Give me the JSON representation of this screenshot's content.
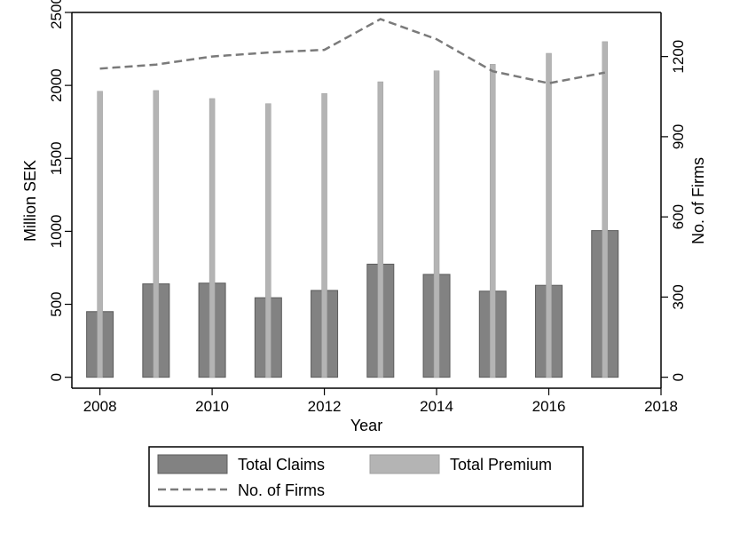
{
  "chart_data": {
    "type": "bar",
    "x": [
      2008,
      2009,
      2010,
      2011,
      2012,
      2013,
      2014,
      2015,
      2016,
      2017
    ],
    "series": [
      {
        "name": "Total Claims",
        "kind": "bar",
        "axis": "left",
        "color": "#828282",
        "values": [
          450,
          640,
          645,
          545,
          595,
          775,
          705,
          590,
          630,
          1005
        ]
      },
      {
        "name": "Total Premium",
        "kind": "bar",
        "axis": "left",
        "color": "#b4b4b4",
        "values": [
          1960,
          1965,
          1910,
          1875,
          1945,
          2025,
          2100,
          2145,
          2220,
          2300
        ]
      },
      {
        "name": "No. of Firms",
        "kind": "line",
        "style": "dashed",
        "axis": "right",
        "color": "#7a7a7a",
        "values": [
          1155,
          1170,
          1200,
          1215,
          1225,
          1340,
          1265,
          1145,
          1100,
          1140
        ]
      }
    ],
    "xlabel": "Year",
    "ylabel": "Million SEK",
    "y2label": "No. of Firms",
    "xlim": [
      2007.5,
      2018
    ],
    "ylim": [
      -75,
      2500
    ],
    "y2lim": [
      -41,
      1365
    ],
    "xticks": [
      2008,
      2010,
      2012,
      2014,
      2016,
      2018
    ],
    "yticks": [
      0,
      500,
      1000,
      1500,
      2000,
      2500
    ],
    "y2ticks": [
      0,
      300,
      600,
      900,
      1200
    ],
    "grid": false,
    "legend_position": "bottom"
  }
}
